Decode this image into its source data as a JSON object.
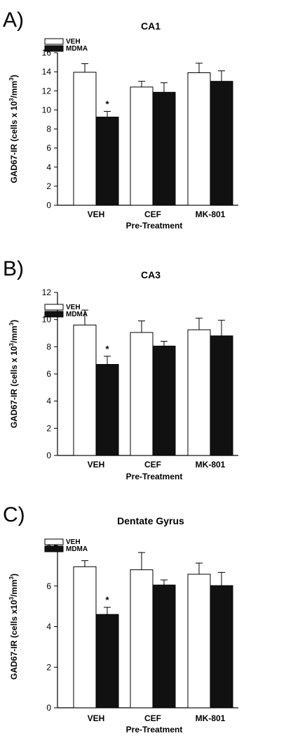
{
  "legend": [
    "VEH",
    "MDMA"
  ],
  "colors": {
    "veh": "#ffffff",
    "mdma": "#111111"
  },
  "chart_data": [
    {
      "type": "bar",
      "panel": "A)",
      "title": "CA1",
      "ylabel": "GAD67-IR (cells x 10",
      "ylabel_sup1": "3",
      "ylabel_mid": "/mm",
      "ylabel_sup2": "3",
      "ylabel_end": ")",
      "xlabel": "Pre-Treatment",
      "categories": [
        "VEH",
        "CEF",
        "MK-801"
      ],
      "ylim": [
        0,
        16
      ],
      "yticks": [
        0,
        2,
        4,
        6,
        8,
        10,
        12,
        14,
        16
      ],
      "legend_placement": "top-left",
      "series": [
        {
          "name": "VEH",
          "values": [
            13.95,
            12.4,
            13.9
          ],
          "errors": [
            0.9,
            0.6,
            1.0
          ]
        },
        {
          "name": "MDMA",
          "values": [
            9.25,
            11.85,
            13.0
          ],
          "errors": [
            0.6,
            1.0,
            1.1
          ]
        }
      ],
      "annotations": [
        {
          "text": "*",
          "category": "VEH",
          "series": "MDMA"
        }
      ]
    },
    {
      "type": "bar",
      "panel": "B)",
      "title": "CA3",
      "ylabel": "GAD67-IR (cells x 10",
      "ylabel_sup1": "3",
      "ylabel_mid": "/mm",
      "ylabel_sup2": "3",
      "ylabel_end": ")",
      "xlabel": "Pre-Treatment",
      "categories": [
        "VEH",
        "CEF",
        "MK-801"
      ],
      "ylim": [
        0,
        12
      ],
      "yticks": [
        0,
        2,
        4,
        6,
        8,
        10,
        12
      ],
      "legend_placement": "top-left",
      "series": [
        {
          "name": "VEH",
          "values": [
            9.6,
            9.05,
            9.25
          ],
          "errors": [
            1.1,
            0.85,
            0.85
          ]
        },
        {
          "name": "MDMA",
          "values": [
            6.7,
            8.05,
            8.8
          ],
          "errors": [
            0.6,
            0.35,
            1.15
          ]
        }
      ],
      "annotations": [
        {
          "text": "*",
          "category": "VEH",
          "series": "MDMA"
        }
      ]
    },
    {
      "type": "bar",
      "panel": "C)",
      "title": "Dentate Gyrus",
      "ylabel": "GAD67-IR (cells x10",
      "ylabel_sup1": "3",
      "ylabel_mid": "/mm",
      "ylabel_sup2": "3",
      "ylabel_end": ")",
      "xlabel": "Pre-Treatment",
      "categories": [
        "VEH",
        "CEF",
        "MK-801"
      ],
      "ylim": [
        0,
        8
      ],
      "yticks": [
        0,
        2,
        4,
        6,
        8
      ],
      "legend_placement": "top-left",
      "series": [
        {
          "name": "VEH",
          "values": [
            6.95,
            6.8,
            6.58
          ],
          "errors": [
            0.3,
            0.85,
            0.55
          ]
        },
        {
          "name": "MDMA",
          "values": [
            4.6,
            6.05,
            6.02
          ],
          "errors": [
            0.35,
            0.25,
            0.65
          ]
        }
      ],
      "annotations": [
        {
          "text": "*",
          "category": "VEH",
          "series": "MDMA"
        }
      ]
    }
  ]
}
